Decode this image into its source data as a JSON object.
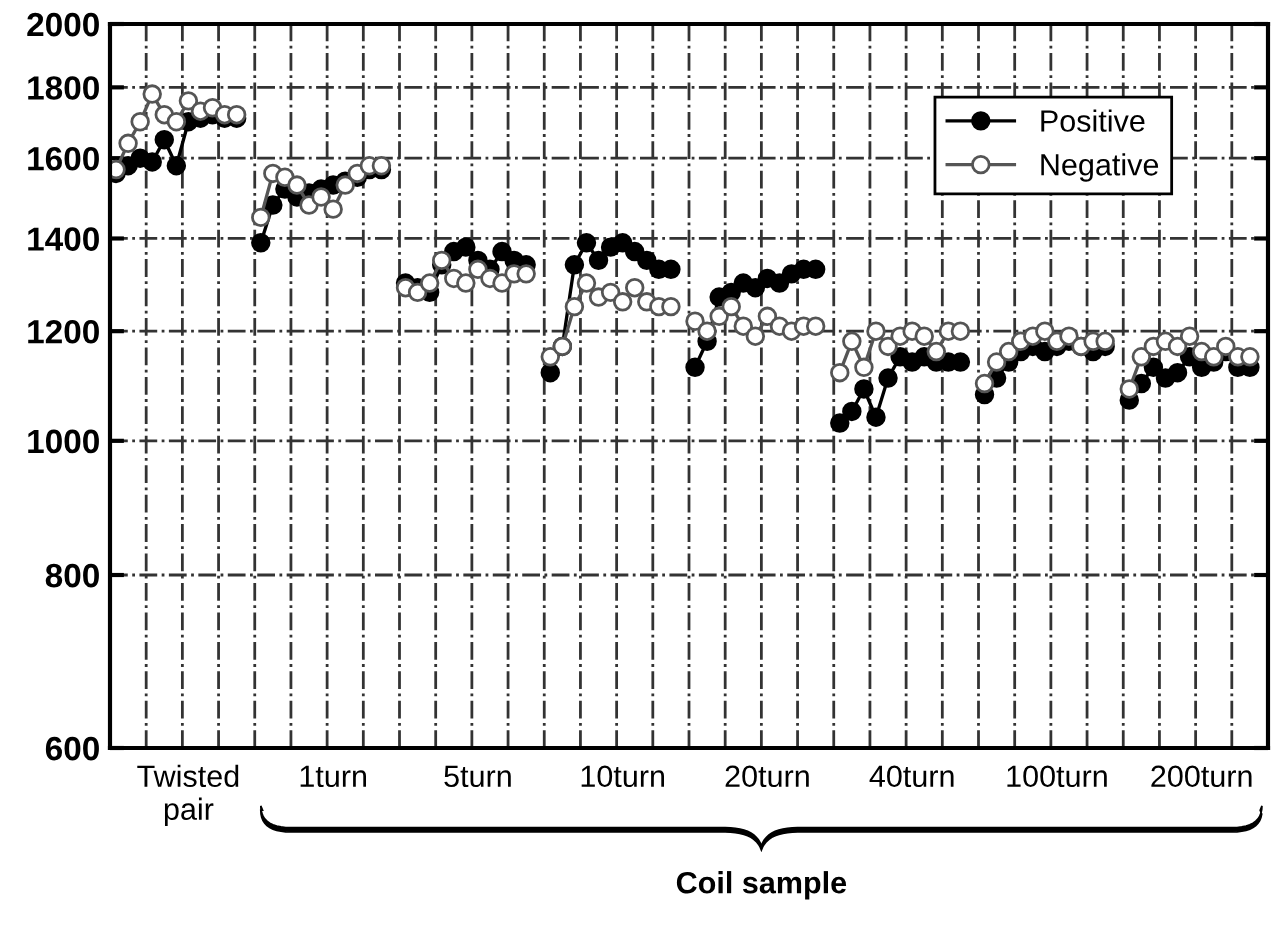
{
  "chart_data": {
    "type": "line",
    "log": "y",
    "marker": "circle",
    "line_style": "solid",
    "grid": true,
    "legend": "top right",
    "ylim": [
      600,
      2000
    ],
    "yticks": [
      600,
      800,
      1000,
      1200,
      1400,
      1600,
      1800,
      2000
    ],
    "categories": [
      null,
      null,
      null,
      null,
      null,
      null,
      "Twisted\npair",
      null,
      null,
      null,
      null,
      null,
      null,
      null,
      null,
      null,
      null,
      null,
      "1turn",
      null,
      null,
      null,
      null,
      null,
      null,
      null,
      null,
      null,
      null,
      null,
      "5turn",
      null,
      null,
      null,
      null,
      null,
      null,
      null,
      null,
      null,
      null,
      null,
      "10turn",
      null,
      null,
      null,
      null,
      null,
      null,
      null,
      null,
      null,
      null,
      null,
      "20turn",
      null,
      null,
      null,
      null,
      null,
      null,
      null,
      null,
      null,
      null,
      null,
      "40turn",
      null,
      null,
      null,
      null,
      null,
      null,
      null,
      null,
      null,
      null,
      null,
      "100turn",
      null,
      null,
      null,
      null,
      null,
      null,
      null,
      null,
      null,
      null,
      null,
      "200turn",
      null,
      null,
      null,
      null,
      null
    ],
    "annotations": [
      "Coil sample"
    ],
    "series": [
      {
        "name": "Positive",
        "color": "#000000",
        "values": [
          1560,
          1580,
          1600,
          1590,
          1650,
          1580,
          1700,
          1710,
          1720,
          1710,
          1710,
          null,
          1390,
          1480,
          1520,
          1500,
          1510,
          1520,
          1530,
          1540,
          1550,
          1570,
          1570,
          null,
          1300,
          1290,
          1280,
          1340,
          1370,
          1380,
          1350,
          1330,
          1370,
          1350,
          1340,
          null,
          1120,
          1170,
          1340,
          1390,
          1350,
          1380,
          1390,
          1370,
          1350,
          1330,
          1330,
          null,
          1130,
          1180,
          1270,
          1280,
          1300,
          1290,
          1310,
          1300,
          1320,
          1330,
          1330,
          null,
          1030,
          1050,
          1090,
          1040,
          1110,
          1150,
          1140,
          1150,
          1140,
          1140,
          1140,
          null,
          1080,
          1110,
          1140,
          1160,
          1170,
          1160,
          1170,
          1180,
          1170,
          1160,
          1170,
          null,
          1070,
          1100,
          1130,
          1110,
          1120,
          1150,
          1130,
          1140,
          1160,
          1130,
          1130,
          null
        ]
      },
      {
        "name": "Negative",
        "color": "#555555",
        "values": [
          1570,
          1640,
          1700,
          1780,
          1720,
          1700,
          1760,
          1730,
          1740,
          1720,
          1720,
          null,
          1450,
          1560,
          1550,
          1530,
          1480,
          1500,
          1470,
          1530,
          1560,
          1580,
          1580,
          null,
          1290,
          1280,
          1300,
          1350,
          1310,
          1300,
          1330,
          1310,
          1300,
          1320,
          1320,
          null,
          1150,
          1170,
          1250,
          1300,
          1270,
          1280,
          1260,
          1290,
          1260,
          1250,
          1250,
          null,
          1220,
          1200,
          1230,
          1250,
          1210,
          1190,
          1230,
          1210,
          1200,
          1210,
          1210,
          null,
          1120,
          1180,
          1130,
          1200,
          1170,
          1190,
          1200,
          1190,
          1160,
          1200,
          1200,
          null,
          1100,
          1140,
          1160,
          1180,
          1190,
          1200,
          1180,
          1190,
          1170,
          1180,
          1180,
          null,
          1090,
          1150,
          1170,
          1180,
          1170,
          1190,
          1160,
          1150,
          1170,
          1150,
          1150,
          null
        ]
      }
    ]
  }
}
